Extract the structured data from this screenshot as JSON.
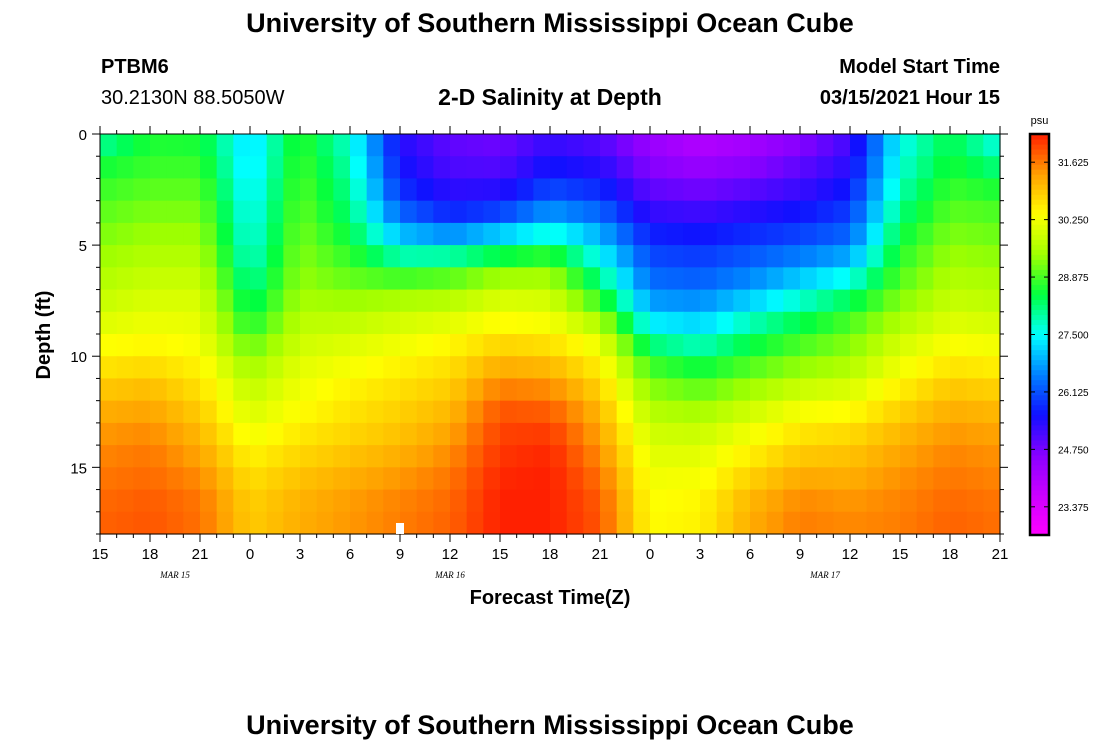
{
  "page": {
    "title_top": "University of Southern Mississippi Ocean Cube",
    "title_bottom": "University of Southern Mississippi Ocean Cube",
    "station_id": "PTBM6",
    "station_coords": "30.2130N 88.5050W",
    "plot_title": "2-D Salinity at Depth",
    "model_start_label": "Model Start Time",
    "model_start_value": "03/15/2021 Hour 15"
  },
  "chart_data": {
    "type": "heatmap",
    "title": "2-D Salinity at Depth",
    "xlabel": "Forecast Time(Z)",
    "ylabel": "Depth (ft)",
    "colorbar_unit": "psu",
    "x_tick_labels": [
      "15",
      "18",
      "21",
      "0",
      "3",
      "6",
      "9",
      "12",
      "15",
      "18",
      "21",
      "0",
      "3",
      "6",
      "9",
      "12",
      "15",
      "18",
      "21"
    ],
    "x_hours": [
      0,
      3,
      6,
      9,
      12,
      15,
      18,
      21,
      24,
      27,
      30,
      33,
      36,
      39,
      42,
      45,
      48,
      51,
      54
    ],
    "date_labels": [
      {
        "text": "MAR 15",
        "hour": 4.5
      },
      {
        "text": "MAR 16",
        "hour": 21
      },
      {
        "text": "MAR 17",
        "hour": 43.5
      }
    ],
    "x_range_hours": [
      0,
      54
    ],
    "y_ticks": [
      0,
      5,
      10,
      15
    ],
    "y_range_ft": [
      0,
      18
    ],
    "colorbar_ticks": [
      31.625,
      30.25,
      28.875,
      27.5,
      26.125,
      24.75,
      23.375
    ],
    "colorbar_range": [
      22.7,
      32.3
    ],
    "colorbar_colors": [
      "#ff00ff",
      "#cc00ff",
      "#8800ff",
      "#1010ff",
      "#0080ff",
      "#00ffff",
      "#00ff40",
      "#a0ff00",
      "#ffff00",
      "#ffa000",
      "#ff2000"
    ],
    "depth_levels_ft": [
      0,
      1,
      2,
      3,
      4,
      5,
      6,
      7,
      8,
      9,
      10,
      11,
      12,
      13,
      14,
      15,
      16,
      17,
      18
    ],
    "sample_hours": [
      0,
      3,
      6,
      9,
      12,
      15,
      18,
      21,
      24,
      27,
      30,
      33,
      36,
      39,
      42,
      45,
      48,
      51,
      54
    ],
    "salinity_psu": [
      [
        27.7,
        28.6,
        28.5,
        27.2,
        28.7,
        27.7,
        25.4,
        24.9,
        24.8,
        25.2,
        25.0,
        24.3,
        23.9,
        24.1,
        24.5,
        25.1,
        27.5,
        28.4,
        27.4
      ],
      [
        28.4,
        28.7,
        28.7,
        27.2,
        28.8,
        27.8,
        25.5,
        25.0,
        24.9,
        25.4,
        25.2,
        24.5,
        24.2,
        24.4,
        24.8,
        25.3,
        27.6,
        28.5,
        27.9
      ],
      [
        28.7,
        28.9,
        28.9,
        27.3,
        28.9,
        28.0,
        25.7,
        25.2,
        25.2,
        25.8,
        25.6,
        24.8,
        24.6,
        24.8,
        25.1,
        25.5,
        27.8,
        28.7,
        28.4
      ],
      [
        28.9,
        29.1,
        29.1,
        27.4,
        29.0,
        28.1,
        26.0,
        25.5,
        25.6,
        26.3,
        26.0,
        25.1,
        25.0,
        25.2,
        25.4,
        25.8,
        28.0,
        28.9,
        28.8
      ],
      [
        29.1,
        29.3,
        29.3,
        27.5,
        29.1,
        28.3,
        26.6,
        26.0,
        26.4,
        27.1,
        26.6,
        25.5,
        25.4,
        25.6,
        25.8,
        26.1,
        28.3,
        29.1,
        29.0
      ],
      [
        29.3,
        29.5,
        29.5,
        27.6,
        29.2,
        28.6,
        27.4,
        27.3,
        27.8,
        28.2,
        27.2,
        25.9,
        25.8,
        26.0,
        26.2,
        26.5,
        28.6,
        29.3,
        29.2
      ],
      [
        29.5,
        29.7,
        29.7,
        27.8,
        29.3,
        28.9,
        28.4,
        28.6,
        29.1,
        29.2,
        27.8,
        26.2,
        26.1,
        26.4,
        26.8,
        27.2,
        28.8,
        29.5,
        29.4
      ],
      [
        29.7,
        29.9,
        29.9,
        28.1,
        29.4,
        29.2,
        29.3,
        29.4,
        29.8,
        29.8,
        28.4,
        26.5,
        26.4,
        26.8,
        27.4,
        28.0,
        29.1,
        29.7,
        29.6
      ],
      [
        29.9,
        30.1,
        30.1,
        28.4,
        29.6,
        29.6,
        29.8,
        29.9,
        30.2,
        30.1,
        29.2,
        27.0,
        26.9,
        27.5,
        28.1,
        28.7,
        29.4,
        29.9,
        29.8
      ],
      [
        30.2,
        30.3,
        30.2,
        28.8,
        29.8,
        29.9,
        30.1,
        30.3,
        30.6,
        30.5,
        30.0,
        27.8,
        27.5,
        28.2,
        28.7,
        29.1,
        29.8,
        30.2,
        30.1
      ],
      [
        30.5,
        30.6,
        30.4,
        29.3,
        30.0,
        30.2,
        30.4,
        30.6,
        31.0,
        30.9,
        30.4,
        28.6,
        28.2,
        28.7,
        29.1,
        29.4,
        30.1,
        30.5,
        30.4
      ],
      [
        30.8,
        30.9,
        30.6,
        29.6,
        30.2,
        30.4,
        30.6,
        30.8,
        31.4,
        31.3,
        30.7,
        29.1,
        28.8,
        29.2,
        29.6,
        29.8,
        30.4,
        30.8,
        30.7
      ],
      [
        31.1,
        31.2,
        30.8,
        29.9,
        30.3,
        30.6,
        30.8,
        31.0,
        31.8,
        31.7,
        31.0,
        29.5,
        29.3,
        29.7,
        30.1,
        30.2,
        30.7,
        31.1,
        31.0
      ],
      [
        31.3,
        31.4,
        31.0,
        30.1,
        30.5,
        30.7,
        30.9,
        31.2,
        32.0,
        32.0,
        31.2,
        29.8,
        29.7,
        30.1,
        30.5,
        30.6,
        31.0,
        31.3,
        31.2
      ],
      [
        31.5,
        31.6,
        31.2,
        30.4,
        30.7,
        30.9,
        31.1,
        31.4,
        32.1,
        32.2,
        31.4,
        30.0,
        30.0,
        30.4,
        30.8,
        30.9,
        31.2,
        31.5,
        31.4
      ],
      [
        31.6,
        31.7,
        31.4,
        30.6,
        30.9,
        31.1,
        31.3,
        31.6,
        32.2,
        32.3,
        31.6,
        30.2,
        30.2,
        30.7,
        31.1,
        31.1,
        31.4,
        31.6,
        31.5
      ],
      [
        31.7,
        31.8,
        31.6,
        30.8,
        31.1,
        31.3,
        31.5,
        31.7,
        32.3,
        32.3,
        31.8,
        30.3,
        30.4,
        31.0,
        31.4,
        31.3,
        31.5,
        31.7,
        31.6
      ],
      [
        31.8,
        31.9,
        31.7,
        30.9,
        31.2,
        31.4,
        31.6,
        31.8,
        32.3,
        32.3,
        31.9,
        30.4,
        30.5,
        31.2,
        31.6,
        31.5,
        31.6,
        31.8,
        31.7
      ],
      [
        31.8,
        31.9,
        31.7,
        30.9,
        31.2,
        31.4,
        31.6,
        31.8,
        32.3,
        32.3,
        31.9,
        30.4,
        30.5,
        31.2,
        31.6,
        31.5,
        31.6,
        31.8,
        31.7
      ]
    ]
  }
}
